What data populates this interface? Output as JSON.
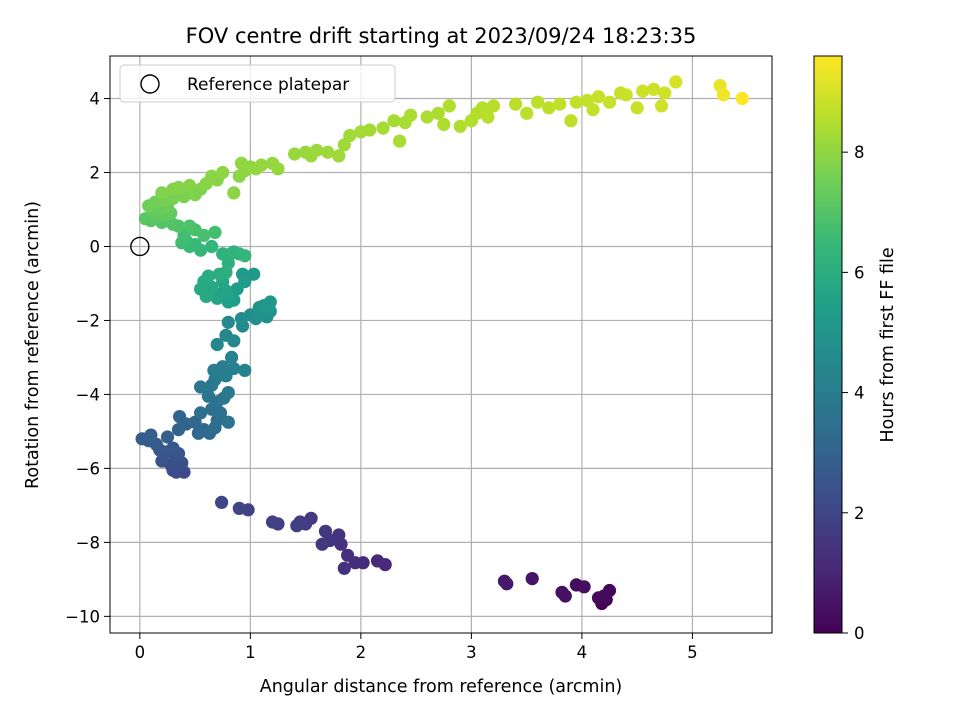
{
  "chart_data": {
    "type": "scatter",
    "title": "FOV centre drift starting at 2023/09/24 18:23:35",
    "xlabel": "Angular distance from reference (arcmin)",
    "ylabel": "Rotation from reference (arcmin)",
    "xlim": [
      -0.27,
      5.72
    ],
    "ylim": [
      -10.45,
      5.15
    ],
    "xticks": [
      0,
      1,
      2,
      3,
      4,
      5
    ],
    "xtick_labels": [
      "0",
      "1",
      "2",
      "3",
      "4",
      "5"
    ],
    "yticks": [
      -10,
      -8,
      -6,
      -4,
      -2,
      0,
      2,
      4
    ],
    "ytick_labels": [
      "−10",
      "−8",
      "−6",
      "−4",
      "−2",
      "0",
      "2",
      "4"
    ],
    "grid": true,
    "legend": {
      "position": "top-left",
      "entries": [
        {
          "label": "Reference platepar",
          "marker": "open-circle",
          "x": 0,
          "y": 0
        }
      ]
    },
    "colorbar": {
      "label": "Hours from first FF file",
      "colormap": "viridis",
      "min": 0,
      "max": 9.6,
      "ticks": [
        0,
        2,
        4,
        6,
        8
      ],
      "tick_labels": [
        "0",
        "2",
        "4",
        "6",
        "8"
      ]
    },
    "colormap_stops": [
      "#440154",
      "#482878",
      "#3e4989",
      "#31688e",
      "#26828e",
      "#1f9e89",
      "#35b779",
      "#6ece58",
      "#b5de2b",
      "#fde725"
    ],
    "points": [
      [
        4.18,
        -9.65,
        0.05
      ],
      [
        4.22,
        -9.55,
        0.1
      ],
      [
        4.25,
        -9.3,
        0.15
      ],
      [
        4.15,
        -9.5,
        0.2
      ],
      [
        4.2,
        -9.45,
        0.25
      ],
      [
        3.95,
        -9.15,
        0.3
      ],
      [
        4.02,
        -9.2,
        0.35
      ],
      [
        3.82,
        -9.35,
        0.4
      ],
      [
        3.85,
        -9.45,
        0.45
      ],
      [
        3.55,
        -8.98,
        0.55
      ],
      [
        3.3,
        -9.05,
        0.6
      ],
      [
        3.32,
        -9.12,
        0.65
      ],
      [
        2.22,
        -8.6,
        1.1
      ],
      [
        2.15,
        -8.5,
        1.15
      ],
      [
        2.02,
        -8.55,
        1.2
      ],
      [
        1.95,
        -8.55,
        1.25
      ],
      [
        1.88,
        -8.35,
        1.3
      ],
      [
        1.85,
        -8.7,
        1.35
      ],
      [
        1.82,
        -8.05,
        1.4
      ],
      [
        1.8,
        -7.8,
        1.45
      ],
      [
        1.72,
        -7.95,
        1.5
      ],
      [
        1.68,
        -7.7,
        1.55
      ],
      [
        1.65,
        -8.05,
        1.6
      ],
      [
        1.55,
        -7.35,
        1.65
      ],
      [
        1.5,
        -7.5,
        1.7
      ],
      [
        1.45,
        -7.45,
        1.75
      ],
      [
        1.42,
        -7.55,
        1.8
      ],
      [
        1.25,
        -7.5,
        1.85
      ],
      [
        1.2,
        -7.45,
        1.9
      ],
      [
        0.98,
        -7.12,
        1.95
      ],
      [
        0.9,
        -7.08,
        2.0
      ],
      [
        0.74,
        -6.92,
        2.05
      ],
      [
        0.4,
        -6.1,
        2.15
      ],
      [
        0.33,
        -6.1,
        2.2
      ],
      [
        0.3,
        -6.05,
        2.25
      ],
      [
        0.28,
        -5.9,
        2.3
      ],
      [
        0.38,
        -5.85,
        2.35
      ],
      [
        0.32,
        -5.75,
        2.4
      ],
      [
        0.2,
        -5.8,
        2.45
      ],
      [
        0.25,
        -5.55,
        2.5
      ],
      [
        0.35,
        -5.6,
        2.55
      ],
      [
        0.3,
        -5.45,
        2.6
      ],
      [
        0.18,
        -5.5,
        2.65
      ],
      [
        0.15,
        -5.35,
        2.7
      ],
      [
        0.08,
        -5.25,
        2.75
      ],
      [
        0.02,
        -5.2,
        2.8
      ],
      [
        0.1,
        -5.1,
        2.85
      ],
      [
        0.25,
        -5.15,
        2.9
      ],
      [
        0.35,
        -4.95,
        3.0
      ],
      [
        0.42,
        -4.8,
        3.05
      ],
      [
        0.36,
        -4.6,
        3.1
      ],
      [
        0.5,
        -4.75,
        3.15
      ],
      [
        0.53,
        -5.05,
        3.2
      ],
      [
        0.58,
        -4.95,
        3.25
      ],
      [
        0.63,
        -5.05,
        3.3
      ],
      [
        0.68,
        -4.9,
        3.35
      ],
      [
        0.7,
        -4.7,
        3.4
      ],
      [
        0.55,
        -4.5,
        3.45
      ],
      [
        0.65,
        -4.4,
        3.5
      ],
      [
        0.73,
        -4.5,
        3.55
      ],
      [
        0.8,
        -4.75,
        3.6
      ],
      [
        0.7,
        -4.2,
        3.65
      ],
      [
        0.62,
        -4.05,
        3.7
      ],
      [
        0.76,
        -4.1,
        3.75
      ],
      [
        0.55,
        -3.8,
        3.8
      ],
      [
        0.65,
        -3.75,
        3.85
      ],
      [
        0.8,
        -3.95,
        3.9
      ],
      [
        0.68,
        -3.6,
        3.95
      ],
      [
        0.72,
        -3.45,
        4.0
      ],
      [
        0.67,
        -3.35,
        4.05
      ],
      [
        0.75,
        -3.25,
        4.1
      ],
      [
        0.78,
        -3.5,
        4.15
      ],
      [
        0.85,
        -3.3,
        4.2
      ],
      [
        0.83,
        -3.0,
        4.25
      ],
      [
        0.95,
        -3.35,
        4.3
      ],
      [
        0.7,
        -2.65,
        4.4
      ],
      [
        0.78,
        -2.4,
        4.45
      ],
      [
        0.85,
        -2.55,
        4.5
      ],
      [
        0.8,
        -2.05,
        4.55
      ],
      [
        0.93,
        -2.15,
        4.6
      ],
      [
        0.92,
        -1.95,
        4.65
      ],
      [
        1.0,
        -1.85,
        4.7
      ],
      [
        1.05,
        -1.95,
        4.75
      ],
      [
        1.1,
        -1.85,
        4.8
      ],
      [
        1.15,
        -1.9,
        4.85
      ],
      [
        1.08,
        -1.65,
        4.9
      ],
      [
        1.12,
        -1.6,
        4.95
      ],
      [
        1.18,
        -1.75,
        5.0
      ],
      [
        1.16,
        -1.65,
        5.05
      ],
      [
        1.18,
        -1.5,
        5.1
      ],
      [
        1.03,
        -0.75,
        5.15
      ],
      [
        0.93,
        -0.75,
        5.2
      ],
      [
        0.95,
        -0.95,
        5.25
      ],
      [
        0.88,
        -1.15,
        5.3
      ],
      [
        0.85,
        -1.45,
        5.35
      ],
      [
        0.8,
        -1.5,
        5.4
      ],
      [
        0.8,
        -1.3,
        5.45
      ],
      [
        0.78,
        -1.2,
        5.5
      ],
      [
        0.75,
        -1.25,
        5.55
      ],
      [
        0.7,
        -1.4,
        5.6
      ],
      [
        0.75,
        -0.95,
        5.65
      ],
      [
        0.65,
        -1.1,
        5.7
      ],
      [
        0.6,
        -1.35,
        5.75
      ],
      [
        0.55,
        -1.15,
        5.8
      ],
      [
        0.58,
        -0.95,
        5.85
      ],
      [
        0.62,
        -0.8,
        5.9
      ],
      [
        0.72,
        -0.75,
        5.95
      ],
      [
        0.78,
        -0.7,
        6.0
      ],
      [
        0.8,
        -0.45,
        6.05
      ],
      [
        0.82,
        -0.2,
        6.1
      ],
      [
        0.75,
        -0.2,
        6.15
      ],
      [
        0.85,
        -0.15,
        6.2
      ],
      [
        0.9,
        -0.2,
        6.25
      ],
      [
        0.95,
        -0.25,
        6.3
      ],
      [
        0.65,
        0.0,
        6.35
      ],
      [
        0.55,
        -0.1,
        6.4
      ],
      [
        0.5,
        0.05,
        6.45
      ],
      [
        0.45,
        0.0,
        6.5
      ],
      [
        0.42,
        0.15,
        6.55
      ],
      [
        0.38,
        0.1,
        6.6
      ],
      [
        0.4,
        0.3,
        6.65
      ],
      [
        0.68,
        0.38,
        6.7
      ],
      [
        0.58,
        0.3,
        6.75
      ],
      [
        0.5,
        0.45,
        6.8
      ],
      [
        0.45,
        0.55,
        6.85
      ],
      [
        0.35,
        0.55,
        6.9
      ],
      [
        0.3,
        0.6,
        6.95
      ],
      [
        0.2,
        0.65,
        7.0
      ],
      [
        0.1,
        0.7,
        7.05
      ],
      [
        0.05,
        0.75,
        7.1
      ],
      [
        0.15,
        0.8,
        7.15
      ],
      [
        0.22,
        0.85,
        7.2
      ],
      [
        0.28,
        0.9,
        7.25
      ],
      [
        0.12,
        0.95,
        7.3
      ],
      [
        0.18,
        1.0,
        7.35
      ],
      [
        0.25,
        1.05,
        7.4
      ],
      [
        0.08,
        1.1,
        7.45
      ],
      [
        0.14,
        1.2,
        7.5
      ],
      [
        0.22,
        1.25,
        7.55
      ],
      [
        0.3,
        1.3,
        7.6
      ],
      [
        0.4,
        1.35,
        7.65
      ],
      [
        0.5,
        1.4,
        7.7
      ],
      [
        0.55,
        1.55,
        7.72
      ],
      [
        0.2,
        1.45,
        7.75
      ],
      [
        0.3,
        1.55,
        7.78
      ],
      [
        0.35,
        1.6,
        7.8
      ],
      [
        0.45,
        1.65,
        7.82
      ],
      [
        0.6,
        1.7,
        7.84
      ],
      [
        0.7,
        1.8,
        7.86
      ],
      [
        0.65,
        1.9,
        7.88
      ],
      [
        0.85,
        1.45,
        7.9
      ],
      [
        0.9,
        1.9,
        7.92
      ],
      [
        0.75,
        2.0,
        7.94
      ],
      [
        0.95,
        2.05,
        7.96
      ],
      [
        1.0,
        2.15,
        7.98
      ],
      [
        0.92,
        2.25,
        8.0
      ],
      [
        1.05,
        2.1,
        8.02
      ],
      [
        1.1,
        2.2,
        8.04
      ],
      [
        1.2,
        2.25,
        8.06
      ],
      [
        1.25,
        2.1,
        8.08
      ],
      [
        1.4,
        2.5,
        8.1
      ],
      [
        1.5,
        2.55,
        8.12
      ],
      [
        1.55,
        2.45,
        8.14
      ],
      [
        1.6,
        2.6,
        8.16
      ],
      [
        1.7,
        2.55,
        8.18
      ],
      [
        1.8,
        2.45,
        8.2
      ],
      [
        1.85,
        2.75,
        8.22
      ],
      [
        1.9,
        3.0,
        8.24
      ],
      [
        2.0,
        3.1,
        8.26
      ],
      [
        2.08,
        3.15,
        8.28
      ],
      [
        2.2,
        3.2,
        8.3
      ],
      [
        2.3,
        3.4,
        8.32
      ],
      [
        2.4,
        3.35,
        8.34
      ],
      [
        2.35,
        2.85,
        8.36
      ],
      [
        2.45,
        3.55,
        8.38
      ],
      [
        2.6,
        3.5,
        8.4
      ],
      [
        2.7,
        3.6,
        8.42
      ],
      [
        2.75,
        3.3,
        8.44
      ],
      [
        2.8,
        3.8,
        8.46
      ],
      [
        2.9,
        3.25,
        8.48
      ],
      [
        3.0,
        3.4,
        8.5
      ],
      [
        3.05,
        3.6,
        8.52
      ],
      [
        3.1,
        3.75,
        8.54
      ],
      [
        3.15,
        3.5,
        8.56
      ],
      [
        3.2,
        3.8,
        8.58
      ],
      [
        3.4,
        3.85,
        8.6
      ],
      [
        3.5,
        3.6,
        8.62
      ],
      [
        3.6,
        3.9,
        8.64
      ],
      [
        3.7,
        3.75,
        8.66
      ],
      [
        3.8,
        3.85,
        8.68
      ],
      [
        3.9,
        3.4,
        8.7
      ],
      [
        3.95,
        3.9,
        8.72
      ],
      [
        4.05,
        3.95,
        8.74
      ],
      [
        4.1,
        3.7,
        8.76
      ],
      [
        4.15,
        4.05,
        8.78
      ],
      [
        4.25,
        3.9,
        8.8
      ],
      [
        4.35,
        4.15,
        8.82
      ],
      [
        4.4,
        4.1,
        8.84
      ],
      [
        4.5,
        3.75,
        8.86
      ],
      [
        4.55,
        4.2,
        8.88
      ],
      [
        4.65,
        4.25,
        8.9
      ],
      [
        4.75,
        4.15,
        8.92
      ],
      [
        4.72,
        3.8,
        8.94
      ],
      [
        4.85,
        4.45,
        9.0
      ],
      [
        5.25,
        4.35,
        9.3
      ],
      [
        5.28,
        4.1,
        9.4
      ],
      [
        5.45,
        4.0,
        9.6
      ]
    ]
  }
}
